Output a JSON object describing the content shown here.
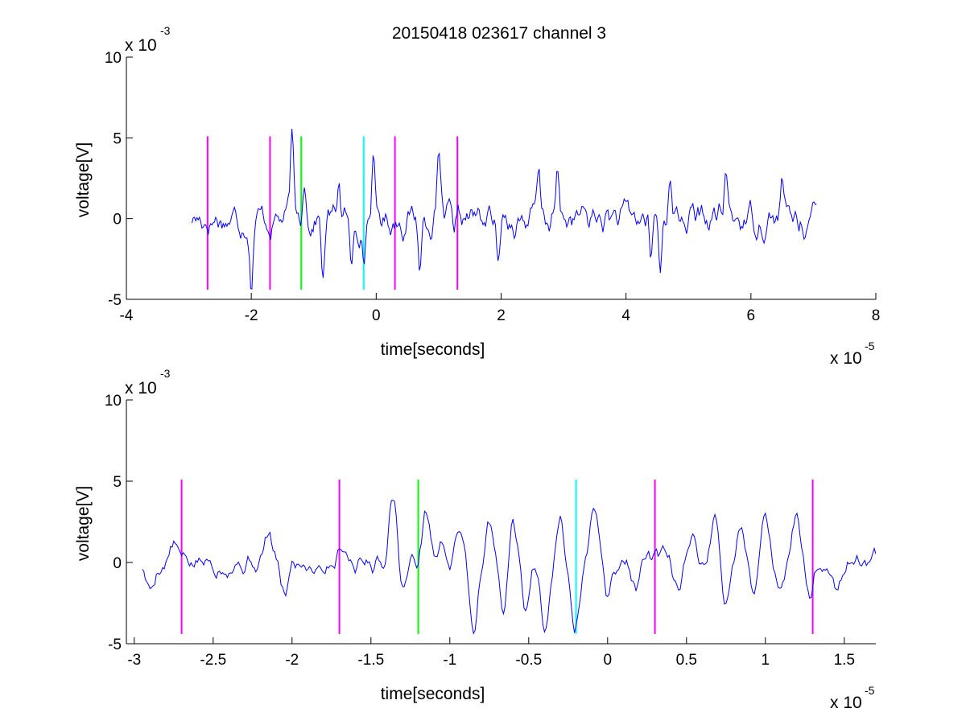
{
  "figure": {
    "title": "20150418 023617 channel 3"
  },
  "chart_data": [
    {
      "type": "line",
      "title": "20150418 023617 channel 3",
      "xlabel": "time[seconds]",
      "ylabel": "voltage[V]",
      "x_multiplier": {
        "base": "x 10",
        "exponent": "-5"
      },
      "y_multiplier": {
        "base": "x 10",
        "exponent": "-3"
      },
      "xlim": [
        -4,
        8
      ],
      "ylim": [
        -5,
        10
      ],
      "x_ticks": [
        -4,
        -2,
        0,
        2,
        4,
        6,
        8
      ],
      "x_tick_labels": [
        "-4",
        "-2",
        "0",
        "2",
        "4",
        "6",
        "8"
      ],
      "y_ticks": [
        -5,
        0,
        5,
        10
      ],
      "y_tick_labels": [
        "-5",
        "0",
        "5",
        "10"
      ],
      "grid": false,
      "series": [
        {
          "color": "#0000ff",
          "x_range": [
            -2.95,
            7.05
          ],
          "x_step": 0.02,
          "seed": 17,
          "noise": 1.0,
          "events": [
            {
              "x": -2.0,
              "y": -3.8
            },
            {
              "x": -1.35,
              "y": 4.6
            },
            {
              "x": -1.15,
              "y": 3.2
            },
            {
              "x": -0.85,
              "y": -3.9
            },
            {
              "x": -0.6,
              "y": 2.6
            },
            {
              "x": -0.4,
              "y": -3.5
            },
            {
              "x": -0.2,
              "y": -2.6
            },
            {
              "x": -0.05,
              "y": 3.6
            },
            {
              "x": 0.7,
              "y": -2.9
            },
            {
              "x": 1.0,
              "y": 3.6
            },
            {
              "x": 1.25,
              "y": -2.3
            },
            {
              "x": 1.95,
              "y": -3.7
            },
            {
              "x": 2.6,
              "y": 2.4
            },
            {
              "x": 2.9,
              "y": 2.6
            },
            {
              "x": 4.4,
              "y": -2.5
            },
            {
              "x": 4.55,
              "y": -3.3
            },
            {
              "x": 4.7,
              "y": 3.4
            },
            {
              "x": 5.6,
              "y": 3.0
            },
            {
              "x": 6.5,
              "y": 2.5
            }
          ]
        }
      ],
      "markers": [
        {
          "x": -2.7,
          "color": "#ff00ff",
          "y_range": [
            -4.4,
            5.1
          ]
        },
        {
          "x": -1.7,
          "color": "#ff00ff",
          "y_range": [
            -4.4,
            5.1
          ]
        },
        {
          "x": -1.2,
          "color": "#00ff00",
          "y_range": [
            -4.4,
            5.1
          ]
        },
        {
          "x": -0.2,
          "color": "#00ffff",
          "y_range": [
            -4.4,
            5.1
          ]
        },
        {
          "x": 0.3,
          "color": "#ff00ff",
          "y_range": [
            -4.4,
            5.1
          ]
        },
        {
          "x": 1.3,
          "color": "#ff00ff",
          "y_range": [
            -4.4,
            5.1
          ]
        }
      ]
    },
    {
      "type": "line",
      "title": "",
      "xlabel": "time[seconds]",
      "ylabel": "voltage[V]",
      "x_multiplier": {
        "base": "x 10",
        "exponent": "-5"
      },
      "y_multiplier": {
        "base": "x 10",
        "exponent": "-3"
      },
      "xlim": [
        -3.05,
        1.7
      ],
      "ylim": [
        -5,
        10
      ],
      "x_ticks": [
        -3,
        -2.5,
        -2,
        -1.5,
        -1,
        -0.5,
        0,
        0.5,
        1,
        1.5
      ],
      "x_tick_labels": [
        "-3",
        "-2.5",
        "-2",
        "-1.5",
        "-1",
        "-0.5",
        "0",
        "0.5",
        "1",
        "1.5"
      ],
      "y_ticks": [
        -5,
        0,
        5,
        10
      ],
      "y_tick_labels": [
        "-5",
        "0",
        "5",
        "10"
      ],
      "grid": false,
      "series": [
        {
          "color": "#0000ff",
          "x_range": [
            -2.95,
            1.7
          ],
          "x_step": 0.01,
          "seed": 5,
          "noise": 0.7,
          "events": [
            {
              "x": -2.9,
              "y": -1.8
            },
            {
              "x": -2.75,
              "y": 1.1
            },
            {
              "x": -2.15,
              "y": 1.6
            },
            {
              "x": -2.05,
              "y": -1.9
            },
            {
              "x": -1.68,
              "y": 1.4
            },
            {
              "x": -1.36,
              "y": 4.6
            },
            {
              "x": -1.3,
              "y": -1.6
            },
            {
              "x": -1.15,
              "y": 3.1
            },
            {
              "x": -1.05,
              "y": 1.0
            },
            {
              "x": -0.93,
              "y": 2.2
            },
            {
              "x": -0.85,
              "y": -3.9
            },
            {
              "x": -0.75,
              "y": 2.2
            },
            {
              "x": -0.66,
              "y": -3.4
            },
            {
              "x": -0.6,
              "y": 2.5
            },
            {
              "x": -0.52,
              "y": -2.9
            },
            {
              "x": -0.4,
              "y": -3.5
            },
            {
              "x": -0.3,
              "y": 2.6
            },
            {
              "x": -0.22,
              "y": -1.9
            },
            {
              "x": -0.2,
              "y": -2.4
            },
            {
              "x": -0.08,
              "y": 3.6
            },
            {
              "x": 0.0,
              "y": -2.3
            },
            {
              "x": 0.18,
              "y": -1.6
            },
            {
              "x": 0.45,
              "y": -1.8
            },
            {
              "x": 0.55,
              "y": 1.3
            },
            {
              "x": 0.68,
              "y": 2.9
            },
            {
              "x": 0.75,
              "y": -2.8
            },
            {
              "x": 0.85,
              "y": 2.5
            },
            {
              "x": 0.93,
              "y": -1.9
            },
            {
              "x": 1.0,
              "y": 3.6
            },
            {
              "x": 1.1,
              "y": -2.2
            },
            {
              "x": 1.2,
              "y": 3.0
            },
            {
              "x": 1.28,
              "y": -2.1
            },
            {
              "x": 1.45,
              "y": -1.6
            }
          ]
        }
      ],
      "markers": [
        {
          "x": -2.7,
          "color": "#ff00ff",
          "y_range": [
            -4.4,
            5.1
          ]
        },
        {
          "x": -1.7,
          "color": "#ff00ff",
          "y_range": [
            -4.4,
            5.1
          ]
        },
        {
          "x": -1.2,
          "color": "#00ff00",
          "y_range": [
            -4.4,
            5.1
          ]
        },
        {
          "x": -0.2,
          "color": "#00ffff",
          "y_range": [
            -4.4,
            5.1
          ]
        },
        {
          "x": 0.3,
          "color": "#ff00ff",
          "y_range": [
            -4.4,
            5.1
          ]
        },
        {
          "x": 1.3,
          "color": "#ff00ff",
          "y_range": [
            -4.4,
            5.1
          ]
        }
      ]
    }
  ]
}
